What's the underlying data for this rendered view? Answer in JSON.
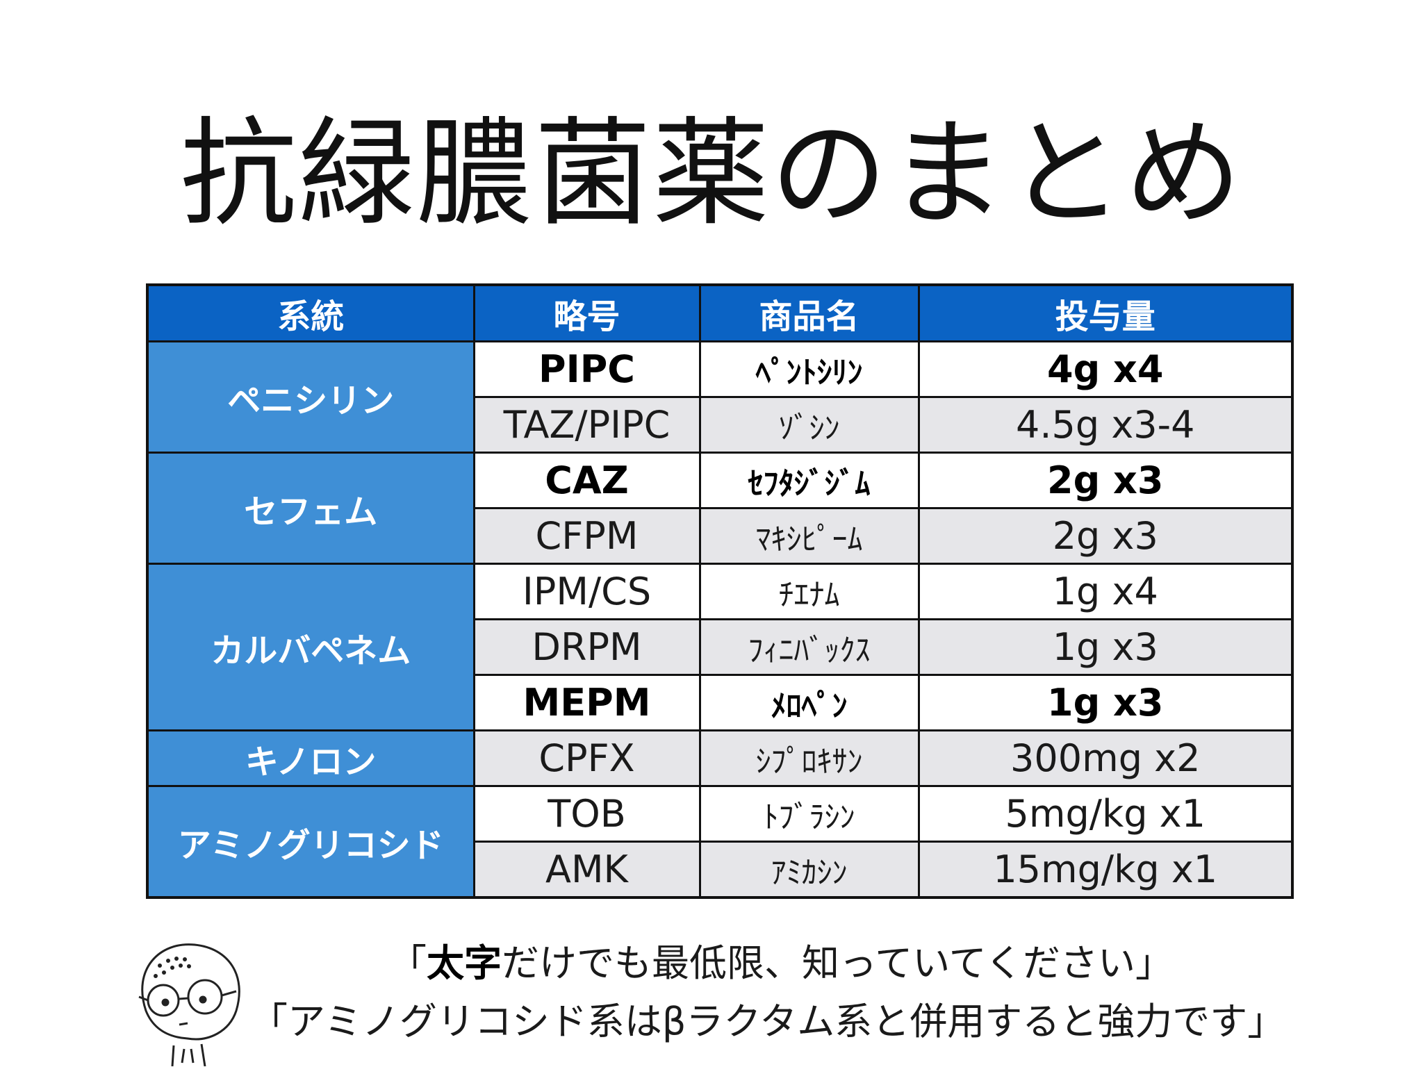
{
  "title": "抗緑膿菌薬のまとめ",
  "table": {
    "headers": [
      "系統",
      "略号",
      "商品名",
      "投与量"
    ],
    "rows": [
      {
        "category": "ペニシリン",
        "abbr": "PIPC",
        "name": "ﾍﾟﾝﾄｼﾘﾝ",
        "dose": "4g x4"
      },
      {
        "abbr": "TAZ/PIPC",
        "name": "ｿﾞｼﾝ",
        "dose": "4.5g x3-4"
      },
      {
        "category": "セフェム",
        "abbr": "CAZ",
        "name": "ｾﾌﾀｼﾞｼﾞﾑ",
        "dose": "2g x3"
      },
      {
        "abbr": "CFPM",
        "name": "ﾏｷｼﾋﾟｰﾑ",
        "dose": "2g x3"
      },
      {
        "category": "カルバペネム",
        "abbr": "IPM/CS",
        "name": "ﾁｴﾅﾑ",
        "dose": "1g x4"
      },
      {
        "abbr": "DRPM",
        "name": "ﾌｨﾆﾊﾞｯｸｽ",
        "dose": "1g x3"
      },
      {
        "abbr": "MEPM",
        "name": "ﾒﾛﾍﾟﾝ",
        "dose": "1g x3"
      },
      {
        "category": "キノロン",
        "abbr": "CPFX",
        "name": "ｼﾌﾟﾛｷｻﾝ",
        "dose": "300mg x2"
      },
      {
        "category": "アミノグリコシド",
        "abbr": "TOB",
        "name": "ﾄﾌﾞﾗｼﾝ",
        "dose": "5mg/kg x1"
      },
      {
        "abbr": "AMK",
        "name": "ｱﾐｶｼﾝ",
        "dose": "15mg/kg x1"
      }
    ]
  },
  "notes": {
    "line1_open": "「",
    "line1_bold": "太字",
    "line1_rest": "だけでも最低限、知っていてください」",
    "line2": "「アミノグリコシド系はβラクタム系と併用すると強力です」"
  }
}
